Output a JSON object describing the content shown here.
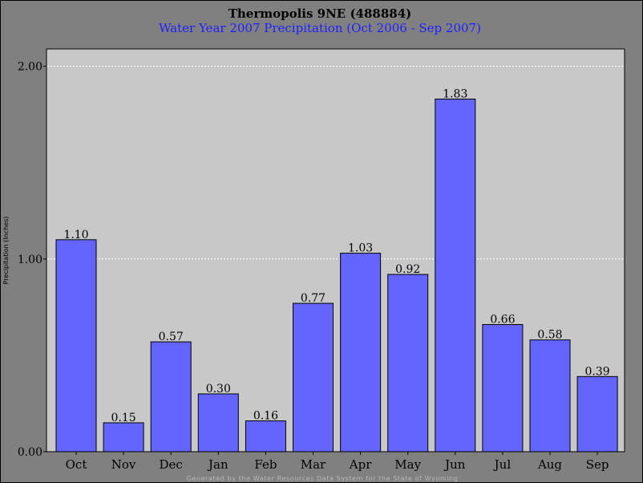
{
  "chart_data": {
    "type": "bar",
    "title": "Thermopolis 9NE (488884)",
    "subtitle": "Water Year 2007 Precipitation (Oct 2006 - Sep 2007)",
    "xlabel": "",
    "ylabel": "Precipitation (Inches)",
    "categories": [
      "Oct",
      "Nov",
      "Dec",
      "Jan",
      "Feb",
      "Mar",
      "Apr",
      "May",
      "Jun",
      "Jul",
      "Aug",
      "Sep"
    ],
    "values": [
      1.1,
      0.15,
      0.57,
      0.3,
      0.16,
      0.77,
      1.03,
      0.92,
      1.83,
      0.66,
      0.58,
      0.39
    ],
    "value_labels": [
      "1.10",
      "0.15",
      "0.57",
      "0.30",
      "0.16",
      "0.77",
      "1.03",
      "0.92",
      "1.83",
      "0.66",
      "0.58",
      "0.39"
    ],
    "ylim": [
      0,
      2.0
    ],
    "yticks": [
      0.0,
      1.0,
      2.0
    ],
    "ytick_labels": [
      "0.00",
      "1.00",
      "2.00"
    ],
    "grid": true,
    "colors": {
      "bar": "#6464ff",
      "plot_background": "#c8c8c8",
      "figure_background": "#808080",
      "subtitle": "#1f1fff",
      "grid": "#ffffff"
    },
    "footer": "Generated by the Water Resources Data System for the State of Wyoming"
  }
}
